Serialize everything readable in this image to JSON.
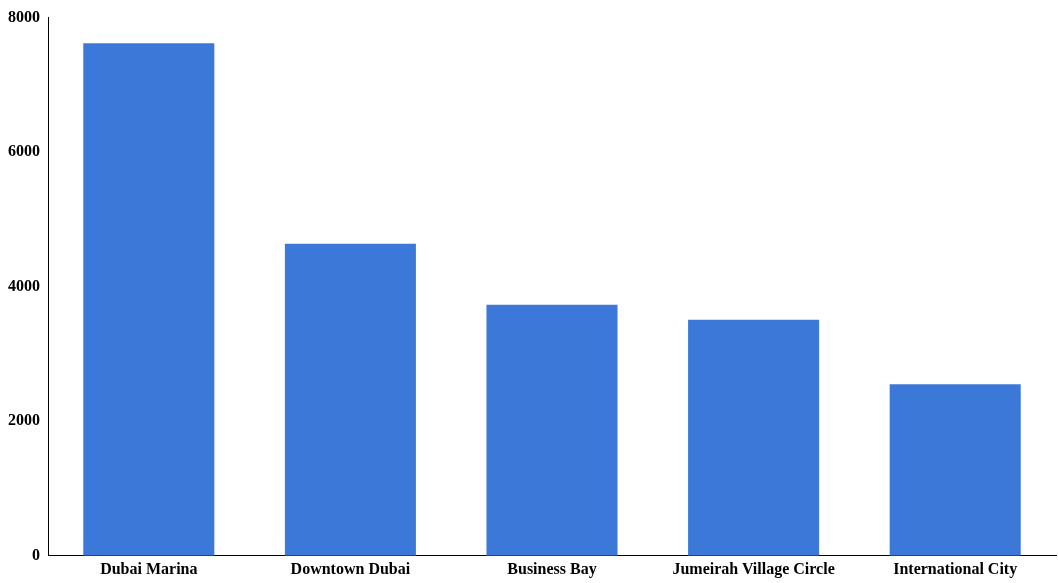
{
  "chart_data": {
    "type": "bar",
    "categories": [
      "Dubai Marina",
      "Downtown Dubai",
      "Business Bay",
      "Jumeirah Village Circle",
      "International City"
    ],
    "values": [
      7620,
      4640,
      3730,
      3510,
      2550
    ],
    "color": "#3c78d8",
    "ylim": [
      0,
      8000
    ],
    "yticks": [
      0,
      2000,
      4000,
      6000,
      8000
    ],
    "grid": false,
    "legend": false
  }
}
